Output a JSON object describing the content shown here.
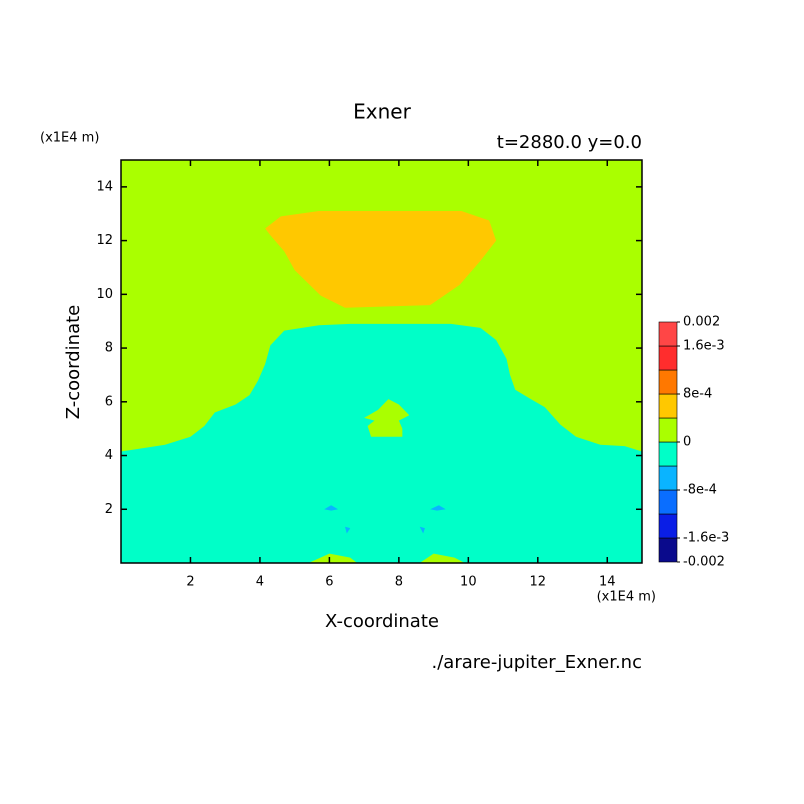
{
  "chart_data": {
    "type": "contour",
    "title": "Exner",
    "subtitle": "t=2880.0 y=0.0",
    "x_label": "X-coordinate",
    "y_label": "Z-coordinate",
    "x_unit": "(x1E4 m)",
    "y_unit": "(x1E4 m)",
    "source": "./arare-jupiter_Exner.nc",
    "xlim": [
      0,
      15
    ],
    "ylim": [
      0,
      15
    ],
    "xticks": [
      2,
      4,
      6,
      8,
      10,
      12,
      14
    ],
    "yticks": [
      2,
      4,
      6,
      8,
      10,
      12,
      14
    ],
    "colorbar": {
      "levels": [
        -0.002,
        -0.0016,
        -0.0012,
        -0.0008,
        -0.0004,
        0,
        0.0004,
        0.0008,
        0.0012,
        0.0016,
        0.002
      ],
      "colors": [
        "#0a0a8c",
        "#0a1ee6",
        "#0a6eff",
        "#0ab4ff",
        "#00ffc8",
        "#aaff00",
        "#ffc800",
        "#ff7800",
        "#ff2d2d",
        "#ff4646"
      ],
      "ticks": [
        {
          "value": 0.002,
          "label": "0.002"
        },
        {
          "value": 0.0016,
          "label": "1.6e-3"
        },
        {
          "value": 0.0008,
          "label": "8e-4"
        },
        0,
        {
          "value": -0.0008,
          "label": "-8e-4"
        },
        {
          "value": -0.0016,
          "label": "-1.6e-3"
        },
        {
          "value": -0.002,
          "label": "-0.002"
        }
      ]
    },
    "regions": [
      {
        "level": 0,
        "x": [
          0,
          15,
          15,
          0
        ],
        "y": [
          15,
          15,
          0,
          0
        ]
      },
      {
        "level": 0.0004,
        "x": [
          4.15,
          4.6,
          5.7,
          9.8,
          10.6,
          10.8,
          10.35,
          9.75,
          8.9,
          6.45,
          5.75,
          5.0,
          4.7,
          4.3
        ],
        "y": [
          12.45,
          12.9,
          13.1,
          13.1,
          12.75,
          12.0,
          11.25,
          10.35,
          9.6,
          9.5,
          9.95,
          10.9,
          11.6,
          12.2
        ]
      },
      {
        "level": -0.0004,
        "x": [
          0,
          1.27,
          2,
          2.4,
          2.7,
          3.3,
          3.7,
          3.95,
          4.15,
          4.3,
          4.7,
          5.7,
          6.6,
          9.5,
          10.35,
          10.8,
          11.1,
          11.2,
          11.35,
          11.8,
          12.2,
          12.65,
          13.1,
          13.8,
          14.5,
          15,
          15,
          0
        ],
        "y": [
          4.15,
          4.4,
          4.7,
          5.1,
          5.6,
          5.9,
          6.25,
          6.8,
          7.4,
          8.1,
          8.65,
          8.85,
          8.9,
          8.9,
          8.75,
          8.3,
          7.6,
          7.0,
          6.45,
          6.1,
          5.8,
          5.15,
          4.7,
          4.4,
          4.35,
          4.15,
          0,
          0
        ]
      },
      {
        "level": 0,
        "x": [
          7.2,
          7.1,
          7.3,
          7.0,
          7.4,
          7.7,
          8.0,
          8.3,
          8.0,
          8.1,
          8.1
        ],
        "y": [
          4.7,
          5.1,
          5.3,
          5.4,
          5.7,
          6.1,
          5.9,
          5.5,
          5.3,
          5.0,
          4.7
        ]
      },
      {
        "level": 0,
        "x": [
          5.4,
          6.0,
          6.6,
          6.8
        ],
        "y": [
          0,
          0.35,
          0.2,
          0
        ]
      },
      {
        "level": 0,
        "x": [
          8.6,
          9.0,
          9.6,
          9.9
        ],
        "y": [
          0,
          0.35,
          0.2,
          0
        ]
      },
      {
        "level": -0.0008,
        "x": [
          5.85,
          6.05,
          6.25,
          6.05
        ],
        "y": [
          2.0,
          2.15,
          2.0,
          1.95
        ]
      },
      {
        "level": -0.0008,
        "x": [
          6.45,
          6.6,
          6.5
        ],
        "y": [
          1.35,
          1.3,
          1.1
        ]
      },
      {
        "level": -0.0008,
        "x": [
          8.9,
          9.15,
          9.35,
          9.1
        ],
        "y": [
          2.0,
          2.15,
          2.0,
          1.95
        ]
      },
      {
        "level": -0.0008,
        "x": [
          8.6,
          8.75,
          8.7
        ],
        "y": [
          1.35,
          1.3,
          1.1
        ]
      }
    ]
  }
}
